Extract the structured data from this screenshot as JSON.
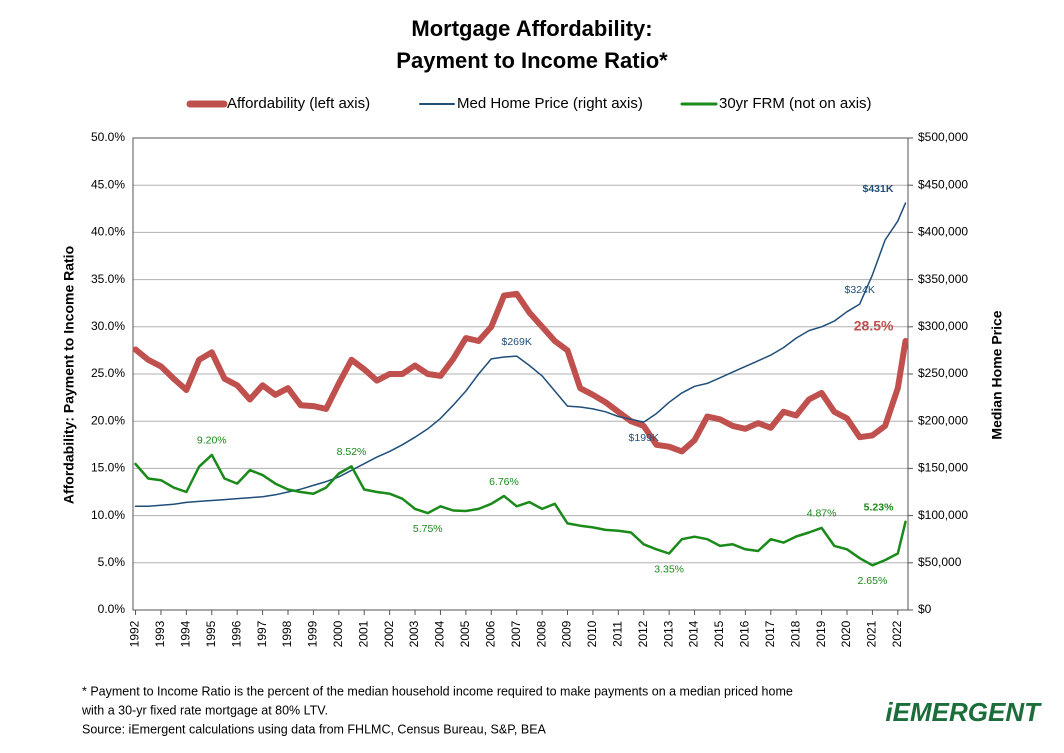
{
  "chart_data": {
    "type": "line",
    "title": [
      "Mortgage Affordability:",
      "Payment to Income Ratio*"
    ],
    "ylabel": "Affordability:  Payment to Income Ratio",
    "y2label": "Median Home Price",
    "footnotes": [
      "* Payment to Income Ratio is the percent of the median household income required to make payments on a median priced home",
      "with a 30-yr fixed rate mortgage at 80% LTV.",
      "Source:  iEmergent calculations using data from FHLMC, Census Bureau, S&P, BEA"
    ],
    "logo": "iEMERGENT",
    "grid": true,
    "legend": "top",
    "x": [
      1992,
      1992.5,
      1993,
      1993.5,
      1994,
      1994.5,
      1995,
      1995.5,
      1996,
      1996.5,
      1997,
      1997.5,
      1998,
      1998.5,
      1999,
      1999.5,
      2000,
      2000.5,
      2001,
      2001.5,
      2002,
      2002.5,
      2003,
      2003.5,
      2004,
      2004.5,
      2005,
      2005.5,
      2006,
      2006.5,
      2007,
      2007.5,
      2008,
      2008.5,
      2009,
      2009.5,
      2010,
      2010.5,
      2011,
      2011.5,
      2012,
      2012.5,
      2013,
      2013.5,
      2014,
      2014.5,
      2015,
      2015.5,
      2016,
      2016.5,
      2017,
      2017.5,
      2018,
      2018.5,
      2019,
      2019.5,
      2020,
      2020.5,
      2021,
      2021.5,
      2022,
      2022.3
    ],
    "xlim": [
      1991.9,
      2022.4
    ],
    "xticks": [
      1992,
      1993,
      1994,
      1995,
      1996,
      1997,
      1998,
      1999,
      2000,
      2001,
      2002,
      2003,
      2004,
      2005,
      2006,
      2007,
      2008,
      2009,
      2010,
      2011,
      2012,
      2013,
      2014,
      2015,
      2016,
      2017,
      2018,
      2019,
      2020,
      2021,
      2022
    ],
    "ylim": [
      0,
      50
    ],
    "yticks": [
      {
        "value": 0,
        "label": "0.0%"
      },
      {
        "value": 5,
        "label": "5.0%"
      },
      {
        "value": 10,
        "label": "10.0%"
      },
      {
        "value": 15,
        "label": "15.0%"
      },
      {
        "value": 20,
        "label": "20.0%"
      },
      {
        "value": 25,
        "label": "25.0%"
      },
      {
        "value": 30,
        "label": "30.0%"
      },
      {
        "value": 35,
        "label": "35.0%"
      },
      {
        "value": 40,
        "label": "40.0%"
      },
      {
        "value": 45,
        "label": "45.0%"
      },
      {
        "value": 50,
        "label": "50.0%"
      }
    ],
    "y2lim": [
      0,
      500000
    ],
    "y2ticks": [
      {
        "value": 0,
        "label": "$0"
      },
      {
        "value": 50000,
        "label": "$50,000"
      },
      {
        "value": 100000,
        "label": "$100,000"
      },
      {
        "value": 150000,
        "label": "$150,000"
      },
      {
        "value": 200000,
        "label": "$200,000"
      },
      {
        "value": 250000,
        "label": "$250,000"
      },
      {
        "value": 300000,
        "label": "$300,000"
      },
      {
        "value": 350000,
        "label": "$350,000"
      },
      {
        "value": 400000,
        "label": "$400,000"
      },
      {
        "value": 450000,
        "label": "$450,000"
      },
      {
        "value": 500000,
        "label": "$500,000"
      }
    ],
    "y3lim": [
      0,
      28
    ],
    "series": [
      {
        "name": "Affordability (left axis)",
        "color": "#c0504d",
        "axis": "y",
        "values": [
          27.6,
          26.5,
          25.8,
          24.5,
          23.3,
          26.5,
          27.3,
          24.5,
          23.8,
          22.3,
          23.8,
          22.8,
          23.5,
          21.7,
          21.6,
          21.3,
          24.0,
          26.5,
          25.5,
          24.3,
          25.0,
          25.0,
          25.9,
          25.0,
          24.8,
          26.6,
          28.8,
          28.5,
          30.0,
          33.3,
          33.5,
          31.5,
          30.0,
          28.5,
          27.5,
          23.5,
          22.8,
          22.0,
          21.0,
          20.0,
          19.5,
          17.5,
          17.3,
          16.8,
          18.0,
          20.5,
          20.2,
          19.5,
          19.2,
          19.8,
          19.3,
          21.0,
          20.6,
          22.3,
          23.0,
          21.0,
          20.3,
          18.3,
          18.5,
          19.5,
          23.5,
          28.5
        ],
        "value_labels": [
          null,
          null,
          null,
          null,
          null,
          null,
          null,
          null,
          null,
          null,
          null,
          null,
          null,
          null,
          null,
          null,
          null,
          null,
          null,
          null,
          null,
          null,
          null,
          null,
          null,
          null,
          null,
          null,
          null,
          null,
          null,
          null,
          null,
          null,
          null,
          null,
          null,
          null,
          null,
          null,
          null,
          null,
          null,
          null,
          null,
          null,
          null,
          null,
          null,
          null,
          null,
          null,
          null,
          null,
          null,
          null,
          null,
          null,
          null,
          null,
          null,
          "28.5%"
        ]
      },
      {
        "name": "Med Home Price (right axis)",
        "color": "#1f4e79",
        "axis": "y2",
        "values": [
          110000,
          110000,
          111000,
          112000,
          114000,
          115000,
          116000,
          117000,
          118000,
          119000,
          120000,
          122000,
          125000,
          128000,
          132000,
          136000,
          141000,
          148000,
          155000,
          162000,
          168000,
          175000,
          183000,
          192000,
          203000,
          217000,
          232000,
          250000,
          266000,
          268000,
          269000,
          259000,
          248000,
          232000,
          216000,
          215000,
          213000,
          210000,
          205000,
          202000,
          199000,
          208000,
          220000,
          230000,
          237000,
          240000,
          246000,
          252000,
          258000,
          264000,
          270000,
          278000,
          288000,
          296000,
          300000,
          306000,
          316000,
          324000,
          355000,
          392000,
          412000,
          431000
        ],
        "value_labels": [
          null,
          null,
          null,
          null,
          null,
          null,
          null,
          null,
          null,
          null,
          null,
          null,
          null,
          null,
          null,
          null,
          null,
          null,
          null,
          null,
          null,
          null,
          null,
          null,
          null,
          null,
          null,
          null,
          null,
          null,
          "$269K",
          null,
          null,
          null,
          null,
          null,
          null,
          null,
          null,
          null,
          "$199K",
          null,
          null,
          null,
          null,
          null,
          null,
          null,
          null,
          null,
          null,
          null,
          null,
          null,
          null,
          null,
          null,
          "$324K",
          null,
          null,
          null,
          "$431K"
        ]
      },
      {
        "name": "30yr FRM (not on axis)",
        "color": "#1a8a1a",
        "axis": "y3",
        "values": [
          8.66,
          7.8,
          7.7,
          7.26,
          7.0,
          8.5,
          9.2,
          7.8,
          7.5,
          8.3,
          8.0,
          7.5,
          7.15,
          7.0,
          6.9,
          7.26,
          8.1,
          8.52,
          7.15,
          7.0,
          6.9,
          6.6,
          6.0,
          5.75,
          6.15,
          5.9,
          5.87,
          6.0,
          6.3,
          6.76,
          6.15,
          6.4,
          6.0,
          6.3,
          5.14,
          5.0,
          4.9,
          4.75,
          4.7,
          4.6,
          3.9,
          3.6,
          3.35,
          4.2,
          4.35,
          4.2,
          3.8,
          3.9,
          3.6,
          3.5,
          4.2,
          4.0,
          4.36,
          4.6,
          4.87,
          3.8,
          3.6,
          3.07,
          2.65,
          2.96,
          3.35,
          5.23
        ],
        "value_labels": [
          null,
          null,
          null,
          null,
          null,
          null,
          "9.20%",
          null,
          null,
          null,
          null,
          null,
          null,
          null,
          null,
          null,
          null,
          "8.52%",
          null,
          null,
          null,
          null,
          null,
          "5.75%",
          null,
          null,
          null,
          null,
          null,
          "6.76%",
          null,
          null,
          null,
          null,
          null,
          null,
          null,
          null,
          null,
          null,
          null,
          null,
          "3.35%",
          null,
          null,
          null,
          null,
          null,
          null,
          null,
          null,
          null,
          null,
          null,
          "4.87%",
          null,
          null,
          null,
          "2.65%",
          null,
          null,
          "5.23%"
        ]
      }
    ]
  }
}
